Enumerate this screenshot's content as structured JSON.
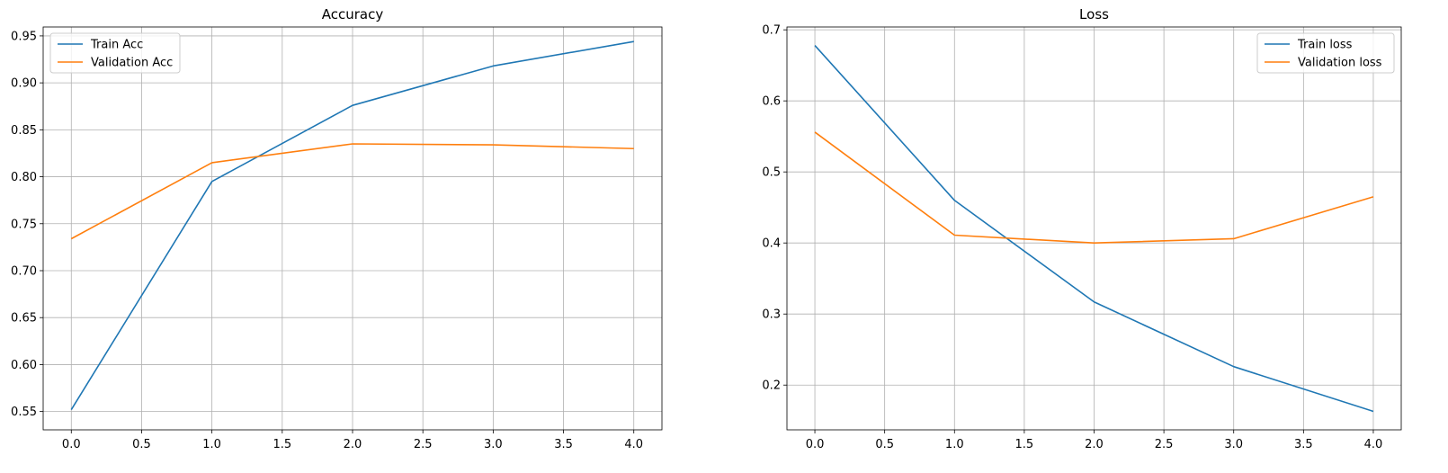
{
  "chart_data": [
    {
      "type": "line",
      "title": "Accuracy",
      "xlabel": "",
      "ylabel": "",
      "x": [
        0,
        1,
        2,
        3,
        4
      ],
      "xticks": [
        "0.0",
        "0.5",
        "1.0",
        "1.5",
        "2.0",
        "2.5",
        "3.0",
        "3.5",
        "4.0"
      ],
      "xtick_values": [
        0,
        0.5,
        1,
        1.5,
        2,
        2.5,
        3,
        3.5,
        4
      ],
      "yticks": [
        "0.55",
        "0.60",
        "0.65",
        "0.70",
        "0.75",
        "0.80",
        "0.85",
        "0.90",
        "0.95"
      ],
      "ytick_values": [
        0.55,
        0.6,
        0.65,
        0.7,
        0.75,
        0.8,
        0.85,
        0.9,
        0.95
      ],
      "xlim": [
        -0.2,
        4.2
      ],
      "ylim": [
        0.5305,
        0.9595
      ],
      "grid": true,
      "legend_position": "upper left",
      "series": [
        {
          "name": "Train Acc",
          "color": "#1f77b4",
          "values": [
            0.552,
            0.795,
            0.876,
            0.918,
            0.944
          ]
        },
        {
          "name": "Validation Acc",
          "color": "#ff7f0e",
          "values": [
            0.734,
            0.815,
            0.835,
            0.834,
            0.83
          ]
        }
      ]
    },
    {
      "type": "line",
      "title": "Loss",
      "xlabel": "",
      "ylabel": "",
      "x": [
        0,
        1,
        2,
        3,
        4
      ],
      "xticks": [
        "0.0",
        "0.5",
        "1.0",
        "1.5",
        "2.0",
        "2.5",
        "3.0",
        "3.5",
        "4.0"
      ],
      "xtick_values": [
        0,
        0.5,
        1,
        1.5,
        2,
        2.5,
        3,
        3.5,
        4
      ],
      "yticks": [
        "0.2",
        "0.3",
        "0.4",
        "0.5",
        "0.6",
        "0.7"
      ],
      "ytick_values": [
        0.2,
        0.3,
        0.4,
        0.5,
        0.6,
        0.7
      ],
      "xlim": [
        -0.2,
        4.2
      ],
      "ylim": [
        0.137,
        0.704
      ],
      "grid": true,
      "legend_position": "upper right",
      "series": [
        {
          "name": "Train loss",
          "color": "#1f77b4",
          "values": [
            0.678,
            0.46,
            0.317,
            0.226,
            0.163
          ]
        },
        {
          "name": "Validation loss",
          "color": "#ff7f0e",
          "values": [
            0.556,
            0.411,
            0.4,
            0.406,
            0.465
          ]
        }
      ]
    }
  ]
}
